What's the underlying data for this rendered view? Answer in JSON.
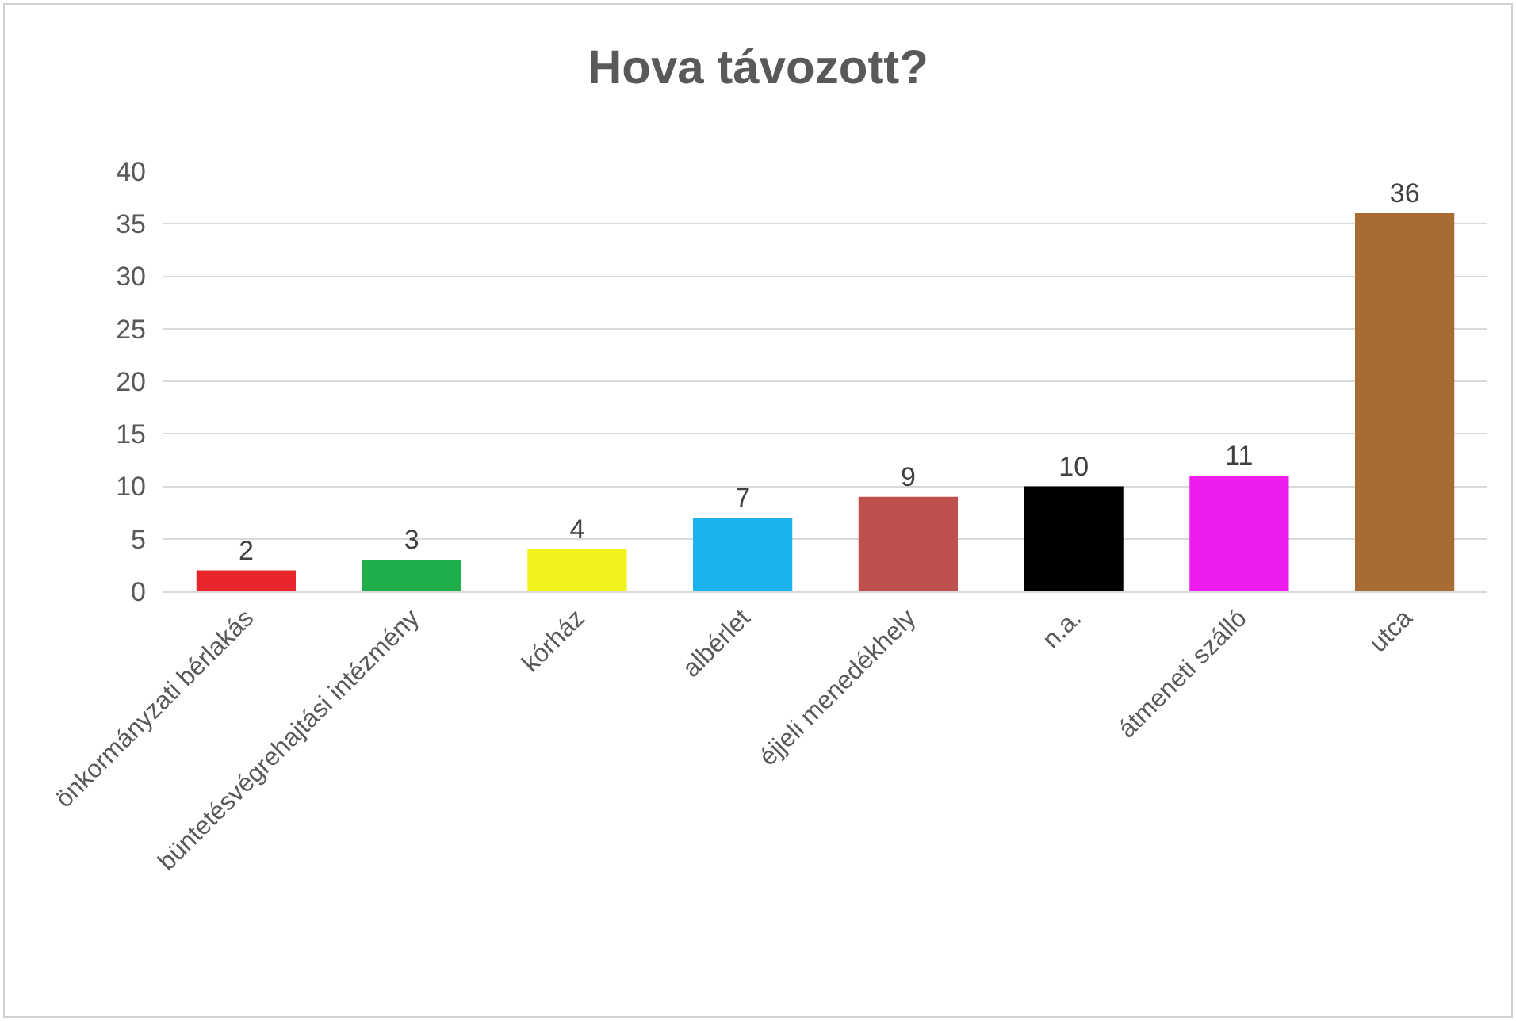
{
  "chart_data": {
    "type": "bar",
    "title": "Hova távozott?",
    "categories": [
      "önkormányzati bérlakás",
      "büntetésvégrehajtási intézmény",
      "kórház",
      "albérlet",
      "éjjeli menedékhely",
      "n.a.",
      "átmeneti szálló",
      "utca"
    ],
    "values": [
      2,
      3,
      4,
      7,
      9,
      10,
      11,
      36
    ],
    "colors": [
      "#e8262b",
      "#1fae4a",
      "#f2f21c",
      "#1cb2ee",
      "#c0504d",
      "#000000",
      "#ee1cee",
      "#a86b32"
    ],
    "ylim": [
      0,
      40
    ],
    "yticks": [
      0,
      5,
      10,
      15,
      20,
      25,
      30,
      35,
      40
    ],
    "grid": "y",
    "data_labels": true
  }
}
